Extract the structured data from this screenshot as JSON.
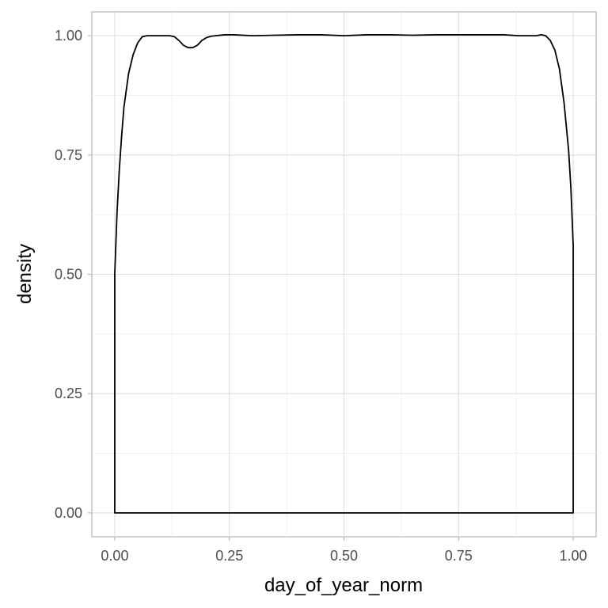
{
  "chart_data": {
    "type": "area",
    "xlabel": "day_of_year_norm",
    "ylabel": "density",
    "xlim": [
      -0.05,
      1.05
    ],
    "ylim": [
      -0.05,
      1.05
    ],
    "x_ticks": [
      0,
      0.25,
      0.5,
      0.75,
      1
    ],
    "x_tick_labels": [
      "0.00",
      "0.25",
      "0.50",
      "0.75",
      "1.00"
    ],
    "y_ticks": [
      0,
      0.25,
      0.5,
      0.75,
      1
    ],
    "y_tick_labels": [
      "0.00",
      "0.25",
      "0.50",
      "0.75",
      "1.00"
    ],
    "grid": true,
    "legend": "none",
    "fill": "none",
    "line_color": "#000000",
    "series": [
      {
        "x": [
          0.0,
          0.005,
          0.01,
          0.015,
          0.02,
          0.03,
          0.04,
          0.05,
          0.06,
          0.07,
          0.08,
          0.1,
          0.12,
          0.13,
          0.14,
          0.15,
          0.16,
          0.17,
          0.18,
          0.19,
          0.2,
          0.21,
          0.22,
          0.24,
          0.26,
          0.3,
          0.35,
          0.4,
          0.45,
          0.5,
          0.55,
          0.6,
          0.65,
          0.7,
          0.75,
          0.8,
          0.85,
          0.88,
          0.9,
          0.92,
          0.93,
          0.94,
          0.95,
          0.96,
          0.97,
          0.98,
          0.99,
          0.995,
          1.0
        ],
        "y": [
          0.5,
          0.63,
          0.72,
          0.79,
          0.85,
          0.92,
          0.96,
          0.985,
          0.998,
          1.0,
          1.0,
          1.0,
          1.0,
          0.998,
          0.99,
          0.98,
          0.975,
          0.975,
          0.98,
          0.99,
          0.996,
          0.999,
          1.0,
          1.002,
          1.002,
          1.0,
          1.001,
          1.002,
          1.002,
          1.0,
          1.002,
          1.002,
          1.001,
          1.002,
          1.002,
          1.002,
          1.002,
          1.0,
          1.0,
          1.0,
          1.002,
          1.0,
          0.99,
          0.97,
          0.93,
          0.86,
          0.76,
          0.68,
          0.56
        ]
      }
    ]
  }
}
